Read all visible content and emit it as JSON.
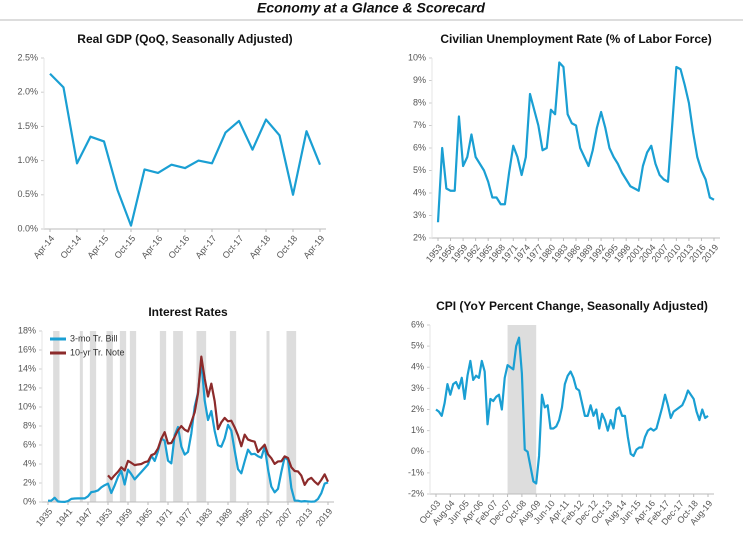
{
  "header": {
    "title": "Economy at a Glance & Scorecard"
  },
  "chart_data": [
    {
      "type": "line",
      "title": "Real GDP (QoQ, Seasonally Adjusted)",
      "categories": [
        "Apr-14",
        null,
        "Oct-14",
        null,
        "Apr-15",
        null,
        "Oct-15",
        null,
        "Apr-16",
        null,
        "Oct-16",
        null,
        "Apr-17",
        null,
        "Oct-17",
        null,
        "Apr-18",
        null,
        "Oct-18",
        null,
        "Apr-19"
      ],
      "values": [
        2.27,
        2.07,
        0.96,
        1.35,
        1.28,
        0.57,
        0.05,
        0.87,
        0.82,
        0.94,
        0.89,
        1.0,
        0.96,
        1.41,
        1.58,
        1.16,
        1.6,
        1.37,
        0.5,
        1.43,
        0.94
      ],
      "color": "#1a9fd3",
      "ylim": [
        0,
        2.5
      ],
      "yticks": [
        {
          "value": 0,
          "label": "0.0%"
        },
        {
          "value": 0.5,
          "label": "0.5%"
        },
        {
          "value": 1,
          "label": "1.0%"
        },
        {
          "value": 1.5,
          "label": "1.5%"
        },
        {
          "value": 2,
          "label": "2.0%"
        },
        {
          "value": 2.5,
          "label": "2.5%"
        }
      ]
    },
    {
      "type": "line",
      "title": "Civilian Unemployment Rate (% of Labor Force)",
      "x": [
        1953,
        1954,
        1955,
        1956,
        1957,
        1958,
        1959,
        1960,
        1961,
        1962,
        1963,
        1964,
        1965,
        1966,
        1967,
        1968,
        1969,
        1970,
        1971,
        1972,
        1973,
        1974,
        1975,
        1976,
        1977,
        1978,
        1979,
        1980,
        1981,
        1982,
        1983,
        1984,
        1985,
        1986,
        1987,
        1988,
        1989,
        1990,
        1991,
        1992,
        1993,
        1994,
        1995,
        1996,
        1997,
        1998,
        1999,
        2000,
        2001,
        2002,
        2003,
        2004,
        2005,
        2006,
        2007,
        2008,
        2009,
        2010,
        2011,
        2012,
        2013,
        2014,
        2015,
        2016,
        2017,
        2018,
        2019
      ],
      "values": [
        2.7,
        6.0,
        4.2,
        4.1,
        4.1,
        7.4,
        5.2,
        5.6,
        6.6,
        5.6,
        5.3,
        5.0,
        4.5,
        3.8,
        3.8,
        3.5,
        3.5,
        4.9,
        6.1,
        5.6,
        4.8,
        5.6,
        8.4,
        7.7,
        7.0,
        5.9,
        6.0,
        7.7,
        7.5,
        9.8,
        9.6,
        7.5,
        7.1,
        7.0,
        6.0,
        5.6,
        5.2,
        5.9,
        6.9,
        7.6,
        6.9,
        6.0,
        5.6,
        5.3,
        4.9,
        4.6,
        4.3,
        4.2,
        4.1,
        5.2,
        5.8,
        6.1,
        5.3,
        4.8,
        4.6,
        4.5,
        7.0,
        9.6,
        9.5,
        8.8,
        8.0,
        6.7,
        5.6,
        5.0,
        4.6,
        3.8,
        3.7
      ],
      "color": "#1a9fd3",
      "xlim": [
        1953,
        2019
      ],
      "xticks": [
        1953,
        1956,
        1959,
        1962,
        1965,
        1968,
        1971,
        1974,
        1977,
        1980,
        1983,
        1986,
        1989,
        1992,
        1995,
        1998,
        2001,
        2004,
        2007,
        2010,
        2013,
        2016,
        2019
      ],
      "ylim": [
        2,
        10
      ],
      "yticks": [
        {
          "value": 2,
          "label": "2%"
        },
        {
          "value": 3,
          "label": "3%"
        },
        {
          "value": 4,
          "label": "4%"
        },
        {
          "value": 5,
          "label": "5%"
        },
        {
          "value": 6,
          "label": "6%"
        },
        {
          "value": 7,
          "label": "7%"
        },
        {
          "value": 8,
          "label": "8%"
        },
        {
          "value": 9,
          "label": "9%"
        },
        {
          "value": 10,
          "label": "10%"
        }
      ]
    },
    {
      "type": "line",
      "title": "Interest Rates",
      "x": [
        1935,
        1936,
        1937,
        1938,
        1939,
        1940,
        1941,
        1942,
        1943,
        1944,
        1945,
        1946,
        1947,
        1948,
        1949,
        1950,
        1951,
        1952,
        1953,
        1954,
        1955,
        1956,
        1957,
        1958,
        1959,
        1960,
        1961,
        1962,
        1963,
        1964,
        1965,
        1966,
        1967,
        1968,
        1969,
        1970,
        1971,
        1972,
        1973,
        1974,
        1975,
        1976,
        1977,
        1978,
        1979,
        1980,
        1981,
        1982,
        1983,
        1984,
        1985,
        1986,
        1987,
        1988,
        1989,
        1990,
        1991,
        1992,
        1993,
        1994,
        1995,
        1996,
        1997,
        1998,
        1999,
        2000,
        2001,
        2002,
        2003,
        2004,
        2005,
        2006,
        2007,
        2008,
        2009,
        2010,
        2011,
        2012,
        2013,
        2014,
        2015,
        2016,
        2017,
        2018,
        2019
      ],
      "series": [
        {
          "name": "3-mo Tr. Bill",
          "color": "#1a9fd3",
          "values": [
            0.14,
            0.14,
            0.45,
            0.05,
            0.02,
            0.01,
            0.1,
            0.33,
            0.37,
            0.38,
            0.38,
            0.38,
            0.6,
            1.04,
            1.1,
            1.22,
            1.55,
            1.77,
            1.93,
            0.95,
            1.75,
            2.66,
            3.27,
            1.84,
            3.41,
            2.93,
            2.38,
            2.78,
            3.16,
            3.55,
            3.95,
            4.88,
            4.32,
            5.34,
            6.68,
            6.46,
            4.35,
            4.07,
            7.04,
            7.89,
            5.84,
            4.99,
            5.27,
            7.22,
            10.04,
            11.51,
            14.8,
            10.69,
            8.63,
            9.58,
            7.48,
            5.98,
            5.82,
            6.69,
            8.12,
            7.51,
            5.42,
            3.45,
            3.02,
            4.29,
            5.51,
            5.02,
            5.07,
            4.82,
            4.66,
            5.85,
            3.45,
            1.62,
            1.02,
            1.38,
            3.16,
            4.73,
            4.41,
            1.48,
            0.15,
            0.14,
            0.05,
            0.09,
            0.06,
            0.03,
            0.05,
            0.32,
            0.93,
            1.94,
            2.06
          ]
        },
        {
          "name": "10-yr Tr. Note",
          "color": "#8c2b2b",
          "values": [
            null,
            null,
            null,
            null,
            null,
            null,
            null,
            null,
            null,
            null,
            null,
            null,
            null,
            null,
            null,
            null,
            null,
            null,
            2.8,
            2.4,
            2.82,
            3.18,
            3.65,
            3.32,
            4.33,
            4.12,
            3.88,
            3.95,
            4.0,
            4.19,
            4.28,
            4.93,
            5.07,
            5.64,
            6.67,
            7.35,
            6.16,
            6.21,
            6.85,
            7.56,
            7.99,
            7.61,
            7.42,
            8.41,
            9.43,
            11.43,
            15.3,
            13.01,
            11.1,
            12.46,
            10.62,
            7.67,
            8.39,
            8.85,
            8.49,
            8.55,
            7.86,
            7.01,
            5.87,
            7.09,
            6.57,
            6.44,
            6.35,
            5.26,
            5.65,
            6.03,
            5.02,
            4.61,
            4.01,
            4.27,
            4.29,
            4.8,
            4.63,
            3.66,
            3.26,
            3.22,
            2.78,
            1.8,
            2.35,
            2.54,
            2.14,
            1.84,
            2.33,
            2.91,
            2.14
          ]
        }
      ],
      "shaded_periods": [
        [
          1937,
          1938
        ],
        [
          1945,
          1945
        ],
        [
          1948,
          1949
        ],
        [
          1953,
          1954
        ],
        [
          1957,
          1958
        ],
        [
          1960,
          1961
        ],
        [
          1969,
          1970
        ],
        [
          1973,
          1975
        ],
        [
          1980,
          1982
        ],
        [
          1990,
          1991
        ],
        [
          2001,
          2001
        ],
        [
          2007,
          2009
        ]
      ],
      "shade_color": "#dddddd",
      "legend": "upper left",
      "xlim": [
        1935,
        2019
      ],
      "xticks": [
        1935,
        1941,
        1947,
        1953,
        1959,
        1965,
        1971,
        1977,
        1983,
        1989,
        1995,
        2001,
        2007,
        2013,
        2019
      ],
      "ylim": [
        0,
        18
      ],
      "yticks": [
        {
          "value": 0,
          "label": "0%"
        },
        {
          "value": 2,
          "label": "2%"
        },
        {
          "value": 4,
          "label": "4%"
        },
        {
          "value": 6,
          "label": "6%"
        },
        {
          "value": 8,
          "label": "8%"
        },
        {
          "value": 10,
          "label": "10%"
        },
        {
          "value": 12,
          "label": "12%"
        },
        {
          "value": 14,
          "label": "14%"
        },
        {
          "value": 16,
          "label": "16%"
        },
        {
          "value": 18,
          "label": "18%"
        }
      ]
    },
    {
      "type": "line",
      "title": "CPI (YoY Percent Change, Seasonally Adjusted)",
      "categories": [
        "Oct-03",
        null,
        null,
        null,
        null,
        "Aug-04",
        null,
        null,
        null,
        null,
        "Jun-05",
        null,
        null,
        null,
        null,
        "Apr-06",
        null,
        null,
        null,
        null,
        "Feb-07",
        null,
        null,
        null,
        null,
        "Dec-07",
        null,
        null,
        null,
        null,
        "Oct-08",
        null,
        null,
        null,
        null,
        "Aug-09",
        null,
        null,
        null,
        null,
        "Jun-10",
        null,
        null,
        null,
        null,
        "Apr-11",
        null,
        null,
        null,
        null,
        "Feb-12",
        null,
        null,
        null,
        null,
        "Dec-12",
        null,
        null,
        null,
        null,
        "Oct-13",
        null,
        null,
        null,
        null,
        "Aug-14",
        null,
        null,
        null,
        null,
        "Jun-15",
        null,
        null,
        null,
        null,
        "Apr-16",
        null,
        null,
        null,
        null,
        "Feb-17",
        null,
        null,
        null,
        null,
        "Dec-17",
        null,
        null,
        null,
        null,
        "Oct-18",
        null,
        null,
        null,
        null,
        "Aug-19"
      ],
      "values": [
        2.0,
        1.9,
        1.7,
        2.3,
        3.2,
        2.7,
        3.2,
        3.3,
        3.0,
        3.5,
        2.5,
        3.6,
        4.3,
        3.4,
        3.6,
        3.5,
        4.3,
        3.8,
        1.3,
        2.5,
        2.4,
        2.6,
        2.7,
        2.0,
        3.5,
        4.1,
        4.0,
        3.9,
        5.0,
        5.4,
        3.7,
        0.1,
        0.0,
        -0.7,
        -1.4,
        -1.5,
        -0.2,
        2.7,
        2.1,
        2.2,
        1.1,
        1.1,
        1.2,
        1.5,
        2.1,
        3.2,
        3.6,
        3.8,
        3.5,
        3.0,
        2.9,
        2.3,
        1.7,
        1.7,
        2.2,
        1.7,
        2.0,
        1.1,
        1.8,
        1.5,
        1.0,
        1.5,
        1.1,
        2.0,
        2.1,
        1.7,
        1.7,
        0.7,
        -0.1,
        -0.2,
        0.1,
        0.2,
        0.2,
        0.7,
        1.0,
        1.1,
        1.0,
        1.1,
        1.6,
        2.1,
        2.7,
        2.2,
        1.6,
        1.9,
        2.0,
        2.1,
        2.2,
        2.5,
        2.9,
        2.7,
        2.5,
        1.9,
        1.5,
        2.0,
        1.6,
        1.7
      ],
      "color": "#1a9fd3",
      "shaded_periods": [
        [
          "Dec-07",
          "Aug-09"
        ]
      ],
      "shade_color": "#dddddd",
      "ylim": [
        -2,
        6
      ],
      "yticks": [
        {
          "value": -2,
          "label": "-2%"
        },
        {
          "value": -1,
          "label": "-1%"
        },
        {
          "value": 0,
          "label": "0%"
        },
        {
          "value": 1,
          "label": "1%"
        },
        {
          "value": 2,
          "label": "2%"
        },
        {
          "value": 3,
          "label": "3%"
        },
        {
          "value": 4,
          "label": "4%"
        },
        {
          "value": 5,
          "label": "5%"
        },
        {
          "value": 6,
          "label": "6%"
        }
      ]
    }
  ]
}
